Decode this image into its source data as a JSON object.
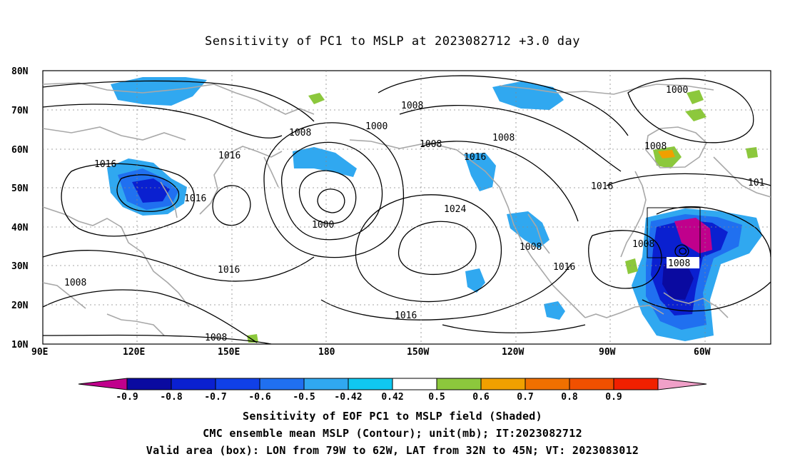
{
  "title": "Sensitivity of PC1 to MSLP at 2023082712 +3.0 day",
  "lat_ticks": [
    "80N",
    "70N",
    "60N",
    "50N",
    "40N",
    "30N",
    "20N",
    "10N"
  ],
  "lon_ticks": [
    "90E",
    "120E",
    "150E",
    "180",
    "150W",
    "120W",
    "90W",
    "60W"
  ],
  "contour_labels": [
    "1016",
    "1016",
    "1016",
    "1008",
    "1008",
    "1008",
    "1000",
    "1008",
    "1008",
    "1000",
    "1016",
    "1024",
    "1008",
    "1016",
    "1016",
    "1016",
    "1000",
    "1008",
    "1008",
    "1016",
    "1008",
    "101"
  ],
  "colorbar": {
    "labels": [
      "-0.9",
      "-0.8",
      "-0.7",
      "-0.6",
      "-0.5",
      "-0.42",
      "0.42",
      "0.5",
      "0.6",
      "0.7",
      "0.8",
      "0.9"
    ],
    "colors": [
      "#c0008c",
      "#0a0aa0",
      "#0a20d0",
      "#1040e8",
      "#2070f0",
      "#30a8f0",
      "#10c8f0",
      "#ffffff",
      "#8cc83c",
      "#f0a000",
      "#f07000",
      "#f05000",
      "#f02000",
      "#f0a0c8"
    ]
  },
  "captions": [
    "Sensitivity of EOF PC1 to MSLP field (Shaded)",
    "CMC ensemble mean MSLP (Contour); unit(mb); IT:2023082712",
    "Valid area (box): LON from 79W to 62W, LAT from 32N to 45N; VT: 2023083012"
  ]
}
